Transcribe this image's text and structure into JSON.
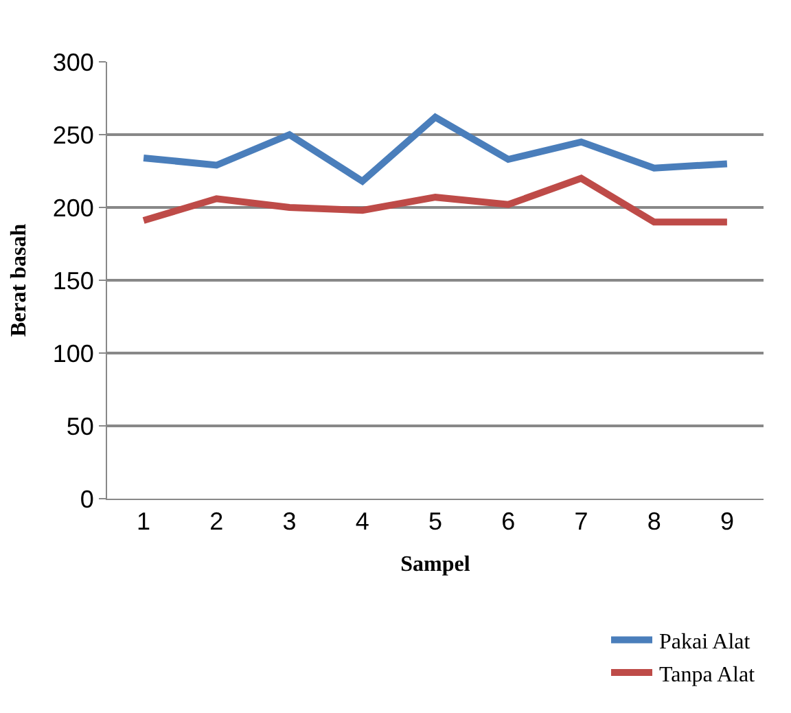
{
  "chart_data": {
    "type": "line",
    "xlabel": "Sampel",
    "ylabel": "Berat basah",
    "categories": [
      "1",
      "2",
      "3",
      "4",
      "5",
      "6",
      "7",
      "8",
      "9"
    ],
    "series": [
      {
        "name": "Pakai Alat",
        "color": "#4a7ebb",
        "values": [
          234,
          229,
          250,
          218,
          262,
          233,
          245,
          227,
          230
        ]
      },
      {
        "name": "Tanpa Alat",
        "color": "#be4b48",
        "values": [
          191,
          206,
          200,
          198,
          207,
          202,
          220,
          190,
          190
        ]
      }
    ],
    "ylim": [
      0,
      300
    ],
    "yticks": [
      0,
      50,
      100,
      150,
      200,
      250,
      300
    ],
    "grid": "y",
    "legend": "bottom right",
    "marker": "none",
    "line_style": "solid"
  }
}
